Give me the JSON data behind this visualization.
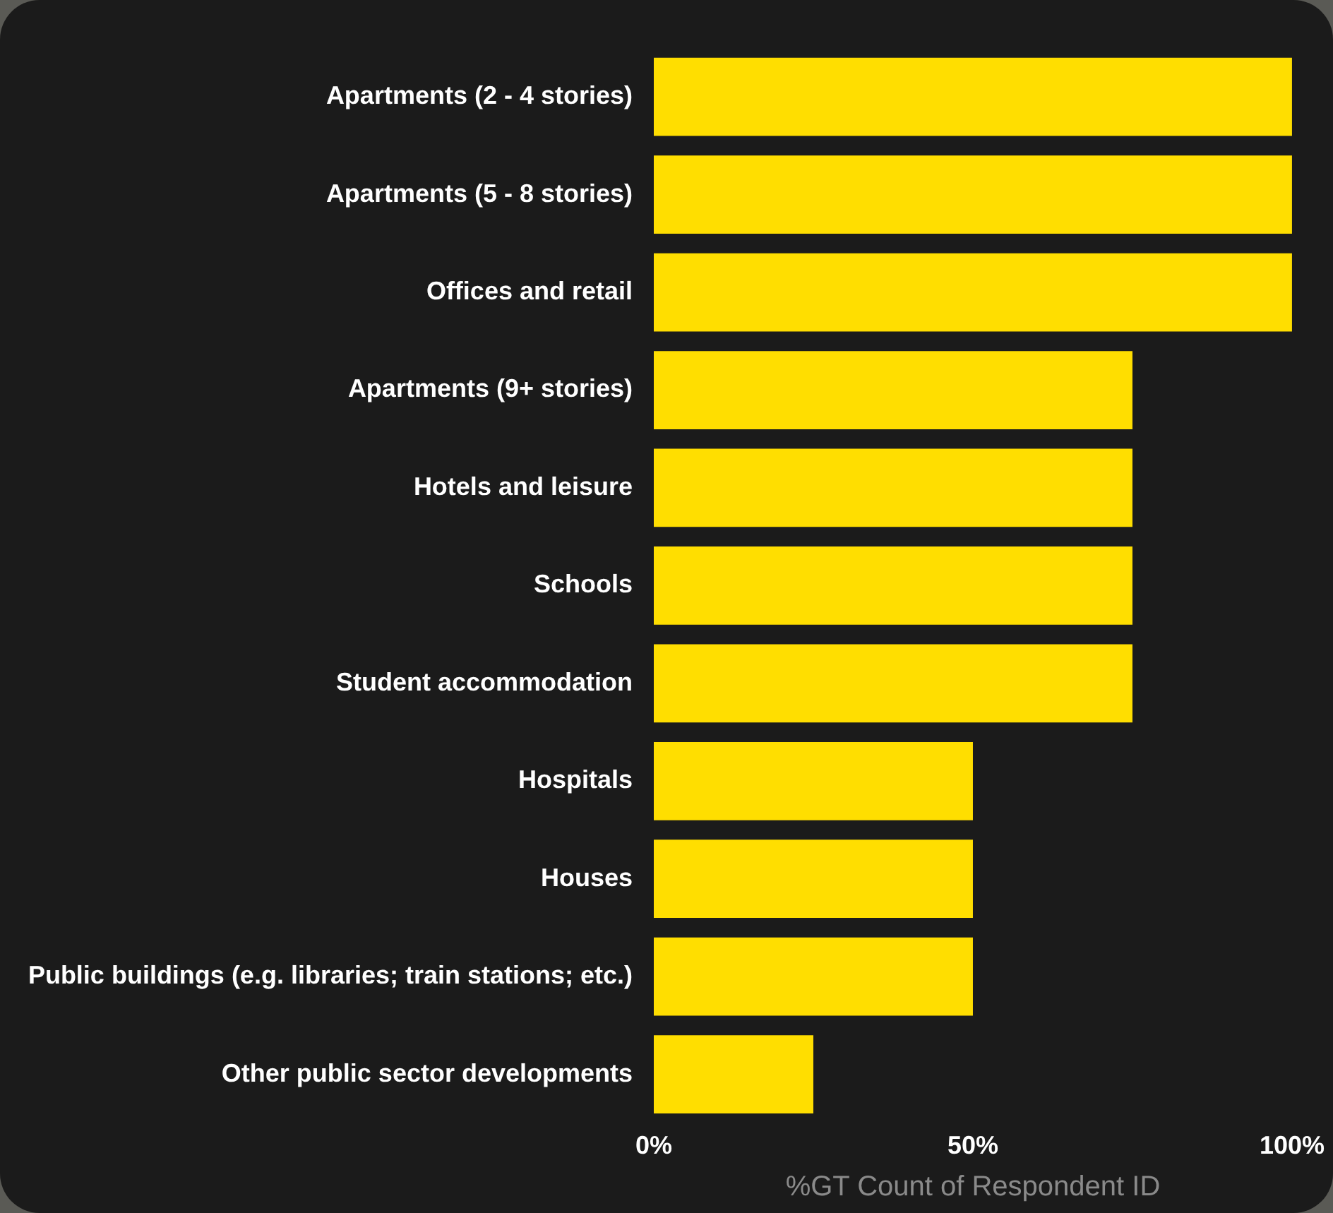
{
  "chart_data": {
    "type": "bar",
    "orientation": "horizontal",
    "xlabel": "%GT Count of Respondent ID",
    "categories": [
      "Apartments (2 - 4 stories)",
      "Apartments (5 - 8 stories)",
      "Offices and retail",
      "Apartments (9+ stories)",
      "Hotels and leisure",
      "Schools",
      "Student accommodation",
      "Hospitals",
      "Houses",
      "Public buildings (e.g. libraries; train stations; etc.)",
      "Other public sector developments"
    ],
    "values": [
      100,
      100,
      100,
      75,
      75,
      75,
      75,
      50,
      50,
      50,
      25
    ],
    "color": "#ffde00",
    "xlim": [
      0,
      100
    ],
    "xticks": [
      {
        "value": 0,
        "label": "0%"
      },
      {
        "value": 50,
        "label": "50%"
      },
      {
        "value": 100,
        "label": "100%"
      }
    ],
    "grid": false,
    "legend": false
  }
}
